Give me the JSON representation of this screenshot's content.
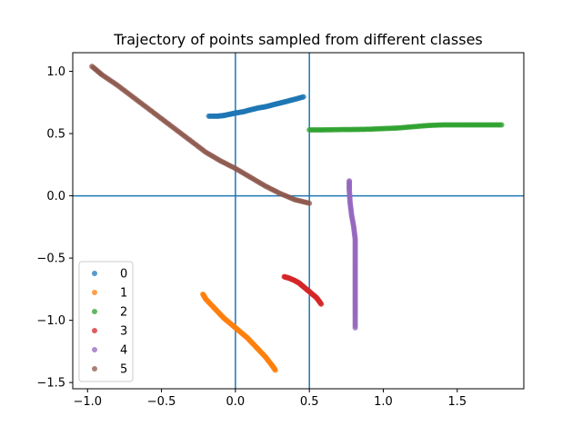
{
  "chart_data": {
    "type": "scatter",
    "title": "Trajectory of points sampled from different classes",
    "xlabel": "",
    "ylabel": "",
    "xlim": [
      -1.1,
      1.95
    ],
    "ylim": [
      -1.55,
      1.15
    ],
    "xticks": [
      -1.0,
      -0.5,
      0.0,
      0.5,
      1.0,
      1.5
    ],
    "xtick_labels": [
      "−1.0",
      "−0.5",
      "0.0",
      "0.5",
      "1.0",
      "1.5"
    ],
    "yticks": [
      -1.5,
      -1.0,
      -0.5,
      0.0,
      0.5,
      1.0
    ],
    "ytick_labels": [
      "−1.5",
      "−1.0",
      "−0.5",
      "0.0",
      "0.5",
      "1.0"
    ],
    "reference_lines": {
      "vertical": [
        0.0,
        0.5
      ],
      "horizontal": [
        0.0
      ],
      "color": "#1f77b4"
    },
    "legend": {
      "placement": "lower-left"
    },
    "grid": false,
    "series": [
      {
        "name": "0",
        "color": "#1f77b4",
        "points": [
          [
            -0.18,
            0.64
          ],
          [
            -0.12,
            0.64
          ],
          [
            -0.08,
            0.645
          ],
          [
            -0.04,
            0.655
          ],
          [
            0.0,
            0.665
          ],
          [
            0.05,
            0.675
          ],
          [
            0.1,
            0.69
          ],
          [
            0.15,
            0.705
          ],
          [
            0.2,
            0.715
          ],
          [
            0.25,
            0.73
          ],
          [
            0.3,
            0.745
          ],
          [
            0.35,
            0.76
          ],
          [
            0.4,
            0.775
          ],
          [
            0.46,
            0.795
          ]
        ]
      },
      {
        "name": "1",
        "color": "#ff7f0e",
        "points": [
          [
            -0.22,
            -0.79
          ],
          [
            -0.2,
            -0.83
          ],
          [
            -0.16,
            -0.88
          ],
          [
            -0.12,
            -0.93
          ],
          [
            -0.08,
            -0.98
          ],
          [
            -0.04,
            -1.02
          ],
          [
            0.0,
            -1.06
          ],
          [
            0.04,
            -1.1
          ],
          [
            0.08,
            -1.14
          ],
          [
            0.12,
            -1.19
          ],
          [
            0.16,
            -1.24
          ],
          [
            0.2,
            -1.29
          ],
          [
            0.24,
            -1.35
          ],
          [
            0.27,
            -1.4
          ]
        ]
      },
      {
        "name": "2",
        "color": "#2ca02c",
        "points": [
          [
            0.5,
            0.53
          ],
          [
            0.6,
            0.53
          ],
          [
            0.7,
            0.532
          ],
          [
            0.8,
            0.533
          ],
          [
            0.9,
            0.535
          ],
          [
            1.0,
            0.54
          ],
          [
            1.1,
            0.545
          ],
          [
            1.2,
            0.555
          ],
          [
            1.3,
            0.565
          ],
          [
            1.4,
            0.57
          ],
          [
            1.5,
            0.57
          ],
          [
            1.6,
            0.57
          ],
          [
            1.7,
            0.57
          ],
          [
            1.8,
            0.57
          ]
        ]
      },
      {
        "name": "3",
        "color": "#d62728",
        "points": [
          [
            0.33,
            -0.65
          ],
          [
            0.36,
            -0.66
          ],
          [
            0.4,
            -0.68
          ],
          [
            0.43,
            -0.7
          ],
          [
            0.46,
            -0.73
          ],
          [
            0.49,
            -0.76
          ],
          [
            0.52,
            -0.79
          ],
          [
            0.55,
            -0.82
          ],
          [
            0.58,
            -0.87
          ]
        ]
      },
      {
        "name": "4",
        "color": "#9467bd",
        "points": [
          [
            0.77,
            0.12
          ],
          [
            0.77,
            0.05
          ],
          [
            0.775,
            -0.05
          ],
          [
            0.785,
            -0.15
          ],
          [
            0.8,
            -0.25
          ],
          [
            0.81,
            -0.35
          ],
          [
            0.81,
            -0.45
          ],
          [
            0.81,
            -0.55
          ],
          [
            0.81,
            -0.65
          ],
          [
            0.81,
            -0.75
          ],
          [
            0.81,
            -0.85
          ],
          [
            0.81,
            -0.95
          ],
          [
            0.81,
            -1.06
          ]
        ]
      },
      {
        "name": "5",
        "color": "#8c564b",
        "points": [
          [
            -0.97,
            1.04
          ],
          [
            -0.9,
            0.97
          ],
          [
            -0.8,
            0.89
          ],
          [
            -0.7,
            0.8
          ],
          [
            -0.6,
            0.71
          ],
          [
            -0.5,
            0.62
          ],
          [
            -0.4,
            0.53
          ],
          [
            -0.3,
            0.44
          ],
          [
            -0.2,
            0.35
          ],
          [
            -0.1,
            0.28
          ],
          [
            0.0,
            0.22
          ],
          [
            0.1,
            0.15
          ],
          [
            0.2,
            0.08
          ],
          [
            0.3,
            0.02
          ],
          [
            0.4,
            -0.03
          ],
          [
            0.5,
            -0.06
          ]
        ]
      }
    ]
  }
}
